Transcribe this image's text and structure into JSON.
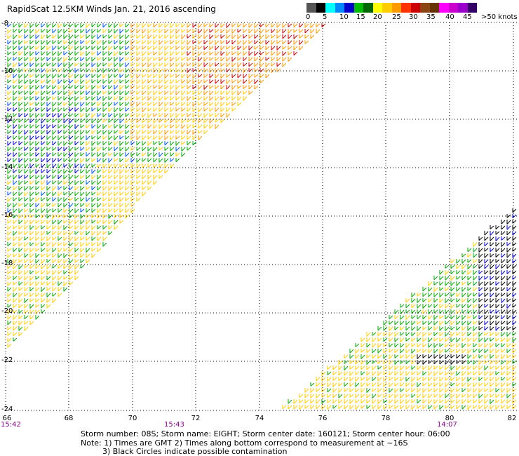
{
  "title": "RapidScat 12.5KM Winds Jan. 21, 2016 ascending",
  "legend": {
    "colors": [
      "#555555",
      "#000000",
      "#00ffff",
      "#0088ff",
      "#0000cc",
      "#00bb00",
      "#006600",
      "#ffff00",
      "#ffcc00",
      "#ff9900",
      "#ff3300",
      "#cc0000",
      "#8b4513",
      "#663300",
      "#ff00ff",
      "#cc00cc",
      "#9900cc",
      "#330066"
    ],
    "labels": [
      "0",
      "5",
      "10",
      "15",
      "20",
      "25",
      "30",
      "35",
      "40",
      "45",
      ">50 knots"
    ]
  },
  "map": {
    "lat_labels": [
      "-8",
      "-10",
      "-12",
      "-14",
      "-16",
      "-18",
      "-20",
      "-22",
      "-24"
    ],
    "lon_labels": [
      "66",
      "68",
      "70",
      "72",
      "74",
      "76",
      "78",
      "80",
      "82"
    ],
    "times": [
      "15:42",
      "15:43",
      "14:07"
    ]
  },
  "footer": {
    "line1": "Storm number: 08S;  Storm name: EIGHT;  Storm center date: 160121;  Storm center hour: 06:00",
    "line2": "Note: 1) Times are GMT  2) Times along bottom correspond to measurement at ~16S",
    "line3": "3) Black Circles indicate possible contamination"
  }
}
